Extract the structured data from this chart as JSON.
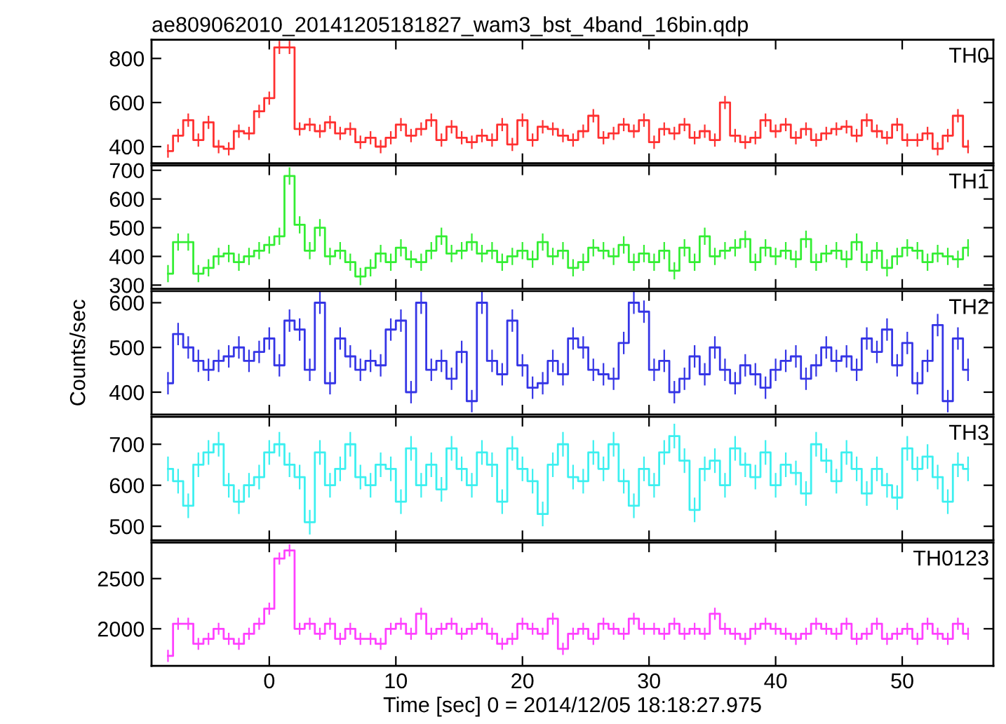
{
  "chart_data": [
    {
      "type": "step",
      "title": "ae809062010_20141205181827_wam3_bst_4band_16bin.qdp",
      "annotations": [
        "TH0"
      ],
      "xlim": [
        -9.3,
        57.2
      ],
      "xticks": [
        0,
        10,
        20,
        30,
        40,
        50
      ],
      "ylim": [
        325,
        885
      ],
      "yticks": [
        400,
        600,
        800
      ],
      "tick_labels": "y",
      "grid": false,
      "legend": false,
      "x": [
        -8.0,
        -7.2,
        -6.4,
        -5.6,
        -4.8,
        -4.0,
        -3.2,
        -2.4,
        -1.6,
        -0.8,
        0.0,
        0.8,
        1.6,
        2.4,
        3.2,
        4.0,
        4.8,
        5.6,
        6.4,
        7.2,
        8.0,
        8.8,
        9.6,
        10.4,
        11.2,
        12.0,
        12.8,
        13.6,
        14.4,
        15.2,
        16.0,
        16.8,
        17.6,
        18.4,
        19.2,
        20.0,
        20.8,
        21.6,
        22.4,
        23.2,
        24.0,
        24.8,
        25.6,
        26.4,
        27.2,
        28.0,
        28.8,
        29.6,
        30.4,
        31.2,
        32.0,
        32.8,
        33.6,
        34.4,
        35.2,
        36.0,
        36.8,
        37.6,
        38.4,
        39.2,
        40.0,
        40.8,
        41.6,
        42.4,
        43.2,
        44.0,
        44.8,
        45.6,
        46.4,
        47.2,
        48.0,
        48.8,
        49.6,
        50.4,
        51.2,
        52.0,
        52.8,
        53.6,
        54.4,
        55.2
      ],
      "series": [
        {
          "color": "#ff3030",
          "values": [
            380,
            450,
            520,
            430,
            510,
            400,
            390,
            470,
            460,
            560,
            620,
            850,
            850,
            480,
            500,
            470,
            510,
            460,
            480,
            420,
            440,
            400,
            440,
            500,
            450,
            480,
            520,
            430,
            490,
            440,
            420,
            450,
            430,
            500,
            410,
            520,
            430,
            490,
            480,
            450,
            430,
            470,
            540,
            440,
            460,
            500,
            470,
            520,
            420,
            480,
            460,
            500,
            440,
            470,
            430,
            600,
            450,
            420,
            440,
            520,
            470,
            500,
            440,
            480,
            430,
            460,
            480,
            490,
            450,
            520,
            470,
            440,
            500,
            430,
            430,
            460,
            390,
            450,
            540,
            400
          ],
          "errors": [
            30,
            30,
            30,
            30,
            30,
            30,
            30,
            30,
            30,
            30,
            30,
            30,
            30,
            30,
            30,
            30,
            30,
            30,
            30,
            30,
            30,
            30,
            30,
            30,
            30,
            30,
            30,
            30,
            30,
            30,
            30,
            30,
            30,
            30,
            30,
            30,
            30,
            30,
            30,
            30,
            30,
            30,
            30,
            30,
            30,
            30,
            30,
            30,
            30,
            30,
            30,
            30,
            30,
            30,
            30,
            30,
            30,
            30,
            30,
            30,
            30,
            30,
            30,
            30,
            30,
            30,
            30,
            30,
            30,
            30,
            30,
            30,
            30,
            30,
            30,
            30,
            30,
            30,
            30,
            30
          ]
        }
      ]
    },
    {
      "type": "step",
      "annotations": [
        "TH1"
      ],
      "xlim": [
        -9.3,
        57.2
      ],
      "xticks": [
        0,
        10,
        20,
        30,
        40,
        50
      ],
      "ylim": [
        287,
        717
      ],
      "yticks": [
        300,
        400,
        500,
        600,
        700
      ],
      "tick_labels": "y",
      "grid": false,
      "legend": false,
      "x": [
        -8.0,
        -7.2,
        -6.4,
        -5.6,
        -4.8,
        -4.0,
        -3.2,
        -2.4,
        -1.6,
        -0.8,
        0.0,
        0.8,
        1.6,
        2.4,
        3.2,
        4.0,
        4.8,
        5.6,
        6.4,
        7.2,
        8.0,
        8.8,
        9.6,
        10.4,
        11.2,
        12.0,
        12.8,
        13.6,
        14.4,
        15.2,
        16.0,
        16.8,
        17.6,
        18.4,
        19.2,
        20.0,
        20.8,
        21.6,
        22.4,
        23.2,
        24.0,
        24.8,
        25.6,
        26.4,
        27.2,
        28.0,
        28.8,
        29.6,
        30.4,
        31.2,
        32.0,
        32.8,
        33.6,
        34.4,
        35.2,
        36.0,
        36.8,
        37.6,
        38.4,
        39.2,
        40.0,
        40.8,
        41.6,
        42.4,
        43.2,
        44.0,
        44.8,
        45.6,
        46.4,
        47.2,
        48.0,
        48.8,
        49.6,
        50.4,
        51.2,
        52.0,
        52.8,
        53.6,
        54.4,
        55.2
      ],
      "series": [
        {
          "color": "#33ee33",
          "values": [
            340,
            450,
            450,
            340,
            360,
            400,
            410,
            380,
            400,
            420,
            440,
            470,
            680,
            510,
            420,
            500,
            400,
            420,
            380,
            330,
            360,
            410,
            380,
            430,
            390,
            380,
            420,
            470,
            410,
            420,
            450,
            410,
            420,
            380,
            400,
            420,
            390,
            450,
            400,
            420,
            360,
            380,
            430,
            420,
            400,
            440,
            380,
            410,
            380,
            420,
            350,
            430,
            380,
            470,
            400,
            420,
            430,
            460,
            380,
            430,
            400,
            420,
            390,
            460,
            380,
            410,
            420,
            390,
            450,
            380,
            420,
            360,
            400,
            430,
            420,
            380,
            410,
            400,
            390,
            430
          ],
          "errors": [
            30,
            30,
            30,
            30,
            30,
            30,
            30,
            30,
            30,
            30,
            30,
            30,
            30,
            30,
            30,
            30,
            30,
            30,
            30,
            30,
            30,
            30,
            30,
            30,
            30,
            30,
            30,
            30,
            30,
            30,
            30,
            30,
            30,
            30,
            30,
            30,
            30,
            30,
            30,
            30,
            30,
            30,
            30,
            30,
            30,
            30,
            30,
            30,
            30,
            30,
            30,
            30,
            30,
            30,
            30,
            30,
            30,
            30,
            30,
            30,
            30,
            30,
            30,
            30,
            30,
            30,
            30,
            30,
            30,
            30,
            30,
            30,
            30,
            30,
            30,
            30,
            30,
            30,
            30,
            30
          ]
        }
      ]
    },
    {
      "type": "step",
      "annotations": [
        "TH2"
      ],
      "ylabel": "Counts/sec",
      "xlim": [
        -9.3,
        57.2
      ],
      "xticks": [
        0,
        10,
        20,
        30,
        40,
        50
      ],
      "ylim": [
        350,
        626
      ],
      "yticks": [
        400,
        500,
        600
      ],
      "tick_labels": "y",
      "grid": false,
      "legend": false,
      "x": [
        -8.0,
        -7.2,
        -6.4,
        -5.6,
        -4.8,
        -4.0,
        -3.2,
        -2.4,
        -1.6,
        -0.8,
        0.0,
        0.8,
        1.6,
        2.4,
        3.2,
        4.0,
        4.8,
        5.6,
        6.4,
        7.2,
        8.0,
        8.8,
        9.6,
        10.4,
        11.2,
        12.0,
        12.8,
        13.6,
        14.4,
        15.2,
        16.0,
        16.8,
        17.6,
        18.4,
        19.2,
        20.0,
        20.8,
        21.6,
        22.4,
        23.2,
        24.0,
        24.8,
        25.6,
        26.4,
        27.2,
        28.0,
        28.8,
        29.6,
        30.4,
        31.2,
        32.0,
        32.8,
        33.6,
        34.4,
        35.2,
        36.0,
        36.8,
        37.6,
        38.4,
        39.2,
        40.0,
        40.8,
        41.6,
        42.4,
        43.2,
        44.0,
        44.8,
        45.6,
        46.4,
        47.2,
        48.0,
        48.8,
        49.6,
        50.4,
        51.2,
        52.0,
        52.8,
        53.6,
        54.4,
        55.2
      ],
      "series": [
        {
          "color": "#3535e6",
          "values": [
            420,
            530,
            500,
            470,
            450,
            470,
            480,
            500,
            470,
            490,
            520,
            460,
            560,
            540,
            450,
            600,
            420,
            520,
            480,
            450,
            470,
            460,
            540,
            560,
            400,
            600,
            450,
            470,
            430,
            490,
            380,
            600,
            470,
            440,
            560,
            460,
            410,
            420,
            470,
            440,
            520,
            500,
            450,
            440,
            430,
            510,
            600,
            580,
            450,
            470,
            400,
            430,
            480,
            440,
            500,
            450,
            420,
            460,
            440,
            410,
            450,
            470,
            480,
            430,
            460,
            500,
            470,
            480,
            450,
            520,
            490,
            540,
            460,
            510,
            420,
            470,
            550,
            380,
            520,
            450
          ],
          "errors": [
            25,
            25,
            25,
            25,
            25,
            25,
            25,
            25,
            25,
            25,
            25,
            25,
            25,
            25,
            25,
            25,
            25,
            25,
            25,
            25,
            25,
            25,
            25,
            25,
            25,
            25,
            25,
            25,
            25,
            25,
            25,
            25,
            25,
            25,
            25,
            25,
            25,
            25,
            25,
            25,
            25,
            25,
            25,
            25,
            25,
            25,
            25,
            25,
            25,
            25,
            25,
            25,
            25,
            25,
            25,
            25,
            25,
            25,
            25,
            25,
            25,
            25,
            25,
            25,
            25,
            25,
            25,
            25,
            25,
            25,
            25,
            25,
            25,
            25,
            25,
            25,
            25,
            25,
            25,
            25
          ]
        }
      ]
    },
    {
      "type": "step",
      "annotations": [
        "TH3"
      ],
      "xlim": [
        -9.3,
        57.2
      ],
      "xticks": [
        0,
        10,
        20,
        30,
        40,
        50
      ],
      "ylim": [
        466,
        767
      ],
      "yticks": [
        500,
        600,
        700
      ],
      "tick_labels": "y",
      "grid": false,
      "legend": false,
      "x": [
        -8.0,
        -7.2,
        -6.4,
        -5.6,
        -4.8,
        -4.0,
        -3.2,
        -2.4,
        -1.6,
        -0.8,
        0.0,
        0.8,
        1.6,
        2.4,
        3.2,
        4.0,
        4.8,
        5.6,
        6.4,
        7.2,
        8.0,
        8.8,
        9.6,
        10.4,
        11.2,
        12.0,
        12.8,
        13.6,
        14.4,
        15.2,
        16.0,
        16.8,
        17.6,
        18.4,
        19.2,
        20.0,
        20.8,
        21.6,
        22.4,
        23.2,
        24.0,
        24.8,
        25.6,
        26.4,
        27.2,
        28.0,
        28.8,
        29.6,
        30.4,
        31.2,
        32.0,
        32.8,
        33.6,
        34.4,
        35.2,
        36.0,
        36.8,
        37.6,
        38.4,
        39.2,
        40.0,
        40.8,
        41.6,
        42.4,
        43.2,
        44.0,
        44.8,
        45.6,
        46.4,
        47.2,
        48.0,
        48.8,
        49.6,
        50.4,
        51.2,
        52.0,
        52.8,
        53.6,
        54.4,
        55.2
      ],
      "series": [
        {
          "color": "#3cf0f0",
          "values": [
            640,
            610,
            550,
            650,
            680,
            700,
            600,
            560,
            600,
            620,
            680,
            700,
            650,
            620,
            510,
            680,
            600,
            640,
            700,
            620,
            600,
            650,
            640,
            560,
            690,
            600,
            650,
            590,
            690,
            640,
            600,
            680,
            650,
            560,
            690,
            640,
            610,
            530,
            650,
            700,
            620,
            610,
            680,
            640,
            700,
            610,
            550,
            640,
            600,
            680,
            720,
            660,
            540,
            640,
            660,
            600,
            690,
            650,
            620,
            680,
            600,
            650,
            630,
            580,
            700,
            660,
            610,
            680,
            640,
            580,
            640,
            600,
            570,
            690,
            640,
            670,
            620,
            560,
            650,
            640
          ],
          "errors": [
            30,
            30,
            30,
            30,
            30,
            30,
            30,
            30,
            30,
            30,
            30,
            30,
            30,
            30,
            30,
            30,
            30,
            30,
            30,
            30,
            30,
            30,
            30,
            30,
            30,
            30,
            30,
            30,
            30,
            30,
            30,
            30,
            30,
            30,
            30,
            30,
            30,
            30,
            30,
            30,
            30,
            30,
            30,
            30,
            30,
            30,
            30,
            30,
            30,
            30,
            30,
            30,
            30,
            30,
            30,
            30,
            30,
            30,
            30,
            30,
            30,
            30,
            30,
            30,
            30,
            30,
            30,
            30,
            30,
            30,
            30,
            30,
            30,
            30,
            30,
            30,
            30,
            30,
            30,
            30
          ]
        }
      ]
    },
    {
      "type": "step",
      "annotations": [
        "TH0123"
      ],
      "xlabel": "Time [sec] 0 = 2014/12/05 18:18:27.975",
      "xlim": [
        -9.3,
        57.2
      ],
      "xticks": [
        0,
        10,
        20,
        30,
        40,
        50
      ],
      "ylim": [
        1630,
        2860
      ],
      "yticks": [
        2000,
        2500
      ],
      "grid": false,
      "legend": false,
      "x": [
        -8.0,
        -7.2,
        -6.4,
        -5.6,
        -4.8,
        -4.0,
        -3.2,
        -2.4,
        -1.6,
        -0.8,
        0.0,
        0.8,
        1.6,
        2.4,
        3.2,
        4.0,
        4.8,
        5.6,
        6.4,
        7.2,
        8.0,
        8.8,
        9.6,
        10.4,
        11.2,
        12.0,
        12.8,
        13.6,
        14.4,
        15.2,
        16.0,
        16.8,
        17.6,
        18.4,
        19.2,
        20.0,
        20.8,
        21.6,
        22.4,
        23.2,
        24.0,
        24.8,
        25.6,
        26.4,
        27.2,
        28.0,
        28.8,
        29.6,
        30.4,
        31.2,
        32.0,
        32.8,
        33.6,
        34.4,
        35.2,
        36.0,
        36.8,
        37.6,
        38.4,
        39.2,
        40.0,
        40.8,
        41.6,
        42.4,
        43.2,
        44.0,
        44.8,
        45.6,
        46.4,
        47.2,
        48.0,
        48.8,
        49.6,
        50.4,
        51.2,
        52.0,
        52.8,
        53.6,
        54.4,
        55.2
      ],
      "series": [
        {
          "color": "#ff40ff",
          "values": [
            1730,
            2050,
            2050,
            1850,
            1900,
            2000,
            1900,
            1850,
            1950,
            2050,
            2200,
            2700,
            2780,
            2000,
            2050,
            1950,
            2050,
            1900,
            2000,
            1900,
            1900,
            1850,
            2000,
            2050,
            1950,
            2150,
            1950,
            2000,
            2050,
            1950,
            2000,
            2050,
            1950,
            1850,
            1900,
            2050,
            2000,
            1950,
            2100,
            1800,
            1950,
            2000,
            1900,
            2050,
            2000,
            1950,
            2100,
            2000,
            2000,
            1950,
            2050,
            1950,
            2000,
            1950,
            2150,
            2000,
            1950,
            1900,
            2000,
            2050,
            2000,
            1950,
            1900,
            1950,
            2050,
            2000,
            1950,
            2050,
            1900,
            1950,
            2050,
            1900,
            1950,
            2000,
            1900,
            2050,
            1950,
            1900,
            2050,
            1950
          ],
          "errors": [
            60,
            60,
            60,
            60,
            60,
            60,
            60,
            60,
            60,
            60,
            60,
            60,
            60,
            60,
            60,
            60,
            60,
            60,
            60,
            60,
            60,
            60,
            60,
            60,
            60,
            60,
            60,
            60,
            60,
            60,
            60,
            60,
            60,
            60,
            60,
            60,
            60,
            60,
            60,
            60,
            60,
            60,
            60,
            60,
            60,
            60,
            60,
            60,
            60,
            60,
            60,
            60,
            60,
            60,
            60,
            60,
            60,
            60,
            60,
            60,
            60,
            60,
            60,
            60,
            60,
            60,
            60,
            60,
            60,
            60,
            60,
            60,
            60,
            60,
            60,
            60,
            60,
            60,
            60,
            60
          ]
        }
      ]
    }
  ]
}
